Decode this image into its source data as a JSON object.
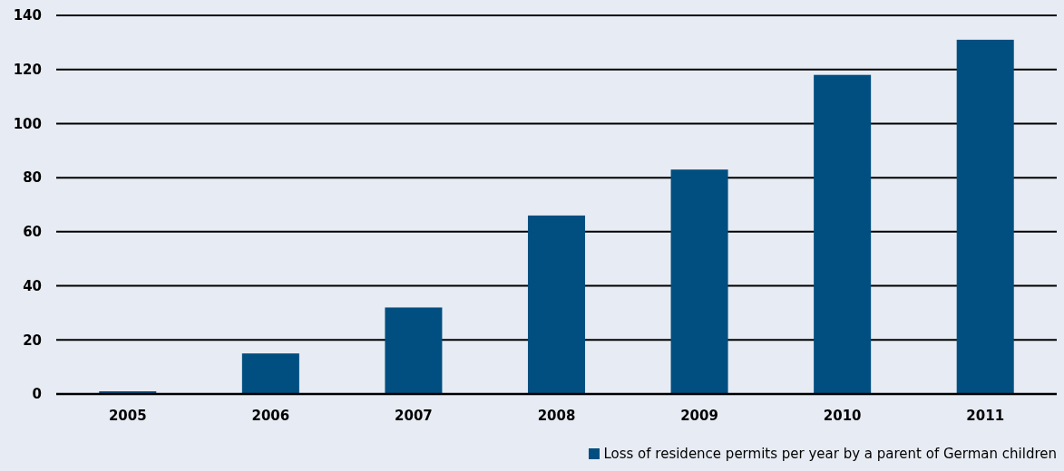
{
  "chart_data": {
    "type": "bar",
    "categories": [
      "2005",
      "2006",
      "2007",
      "2008",
      "2009",
      "2010",
      "2011"
    ],
    "series": [
      {
        "name": "Loss of residence permits per year by a parent of German children",
        "color": "#004f80",
        "values": [
          1,
          15,
          32,
          66,
          83,
          118,
          131
        ]
      }
    ],
    "ylim": [
      0,
      140
    ],
    "yticks": [
      0,
      20,
      40,
      60,
      80,
      100,
      120,
      140
    ],
    "grid": "y",
    "legend": "bottom right"
  }
}
